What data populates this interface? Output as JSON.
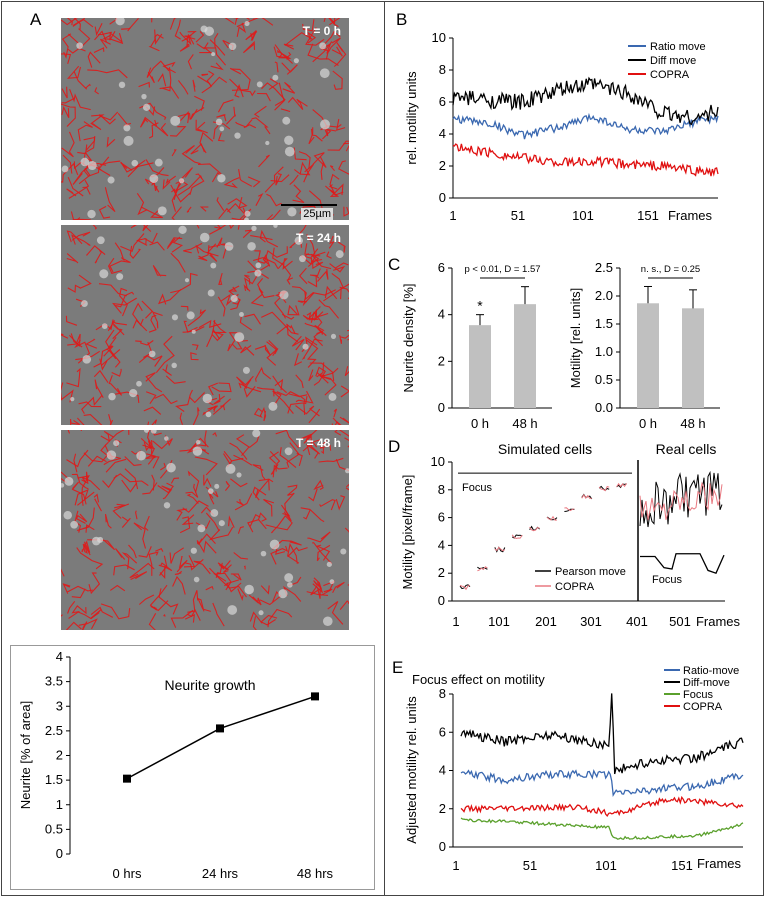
{
  "panel_letters": {
    "A": "A",
    "B": "B",
    "C": "C",
    "D": "D",
    "E": "E"
  },
  "micrographs": [
    {
      "label": "T = 0 h",
      "scalebar": "25µm"
    },
    {
      "label": "T = 24 h"
    },
    {
      "label": "T = 48 h"
    }
  ],
  "colors": {
    "black": "#000000",
    "blue": "#3a68b0",
    "red": "#e01010",
    "green": "#5aa02c",
    "gray": "#c0c0c0",
    "pink": "#e87880",
    "trace": "#e01818"
  },
  "chart_data": [
    {
      "id": "A-neurite-growth",
      "type": "line",
      "title": "Neurite growth",
      "ylabel": "Neurite [% of area]",
      "xlabel": "",
      "categories": [
        "0 hrs",
        "24 hrs",
        "48 hrs"
      ],
      "values": [
        1.53,
        2.55,
        3.2
      ],
      "ylim": [
        0,
        4
      ],
      "yticks": [
        "0",
        "0.5",
        "1",
        "1.5",
        "2",
        "2.5",
        "3",
        "3.5",
        "4"
      ]
    },
    {
      "id": "B-motility",
      "type": "line",
      "ylabel": "rel. motility units",
      "xlabel": "Frames",
      "xlim": [
        1,
        190
      ],
      "ylim": [
        0,
        10
      ],
      "xticks": [
        "1",
        "51",
        "101",
        "151"
      ],
      "yticks": [
        "0",
        "2",
        "4",
        "6",
        "8",
        "10"
      ],
      "series": [
        {
          "name": "Ratio move",
          "color": "#3a68b0",
          "baseline": [
            [
              1,
              5.0
            ],
            [
              30,
              4.6
            ],
            [
              51,
              3.9
            ],
            [
              80,
              4.5
            ],
            [
              101,
              5.1
            ],
            [
              125,
              4.3
            ],
            [
              151,
              4.1
            ],
            [
              175,
              4.8
            ],
            [
              190,
              5.0
            ]
          ],
          "noise": 0.25
        },
        {
          "name": "Diff move",
          "color": "#000000",
          "baseline": [
            [
              1,
              6.3
            ],
            [
              30,
              6.1
            ],
            [
              51,
              6.0
            ],
            [
              80,
              6.8
            ],
            [
              101,
              7.1
            ],
            [
              125,
              6.6
            ],
            [
              151,
              5.3
            ],
            [
              175,
              5.0
            ],
            [
              190,
              5.5
            ]
          ],
          "noise": 0.5
        },
        {
          "name": "COPRA",
          "color": "#e01010",
          "baseline": [
            [
              1,
              3.2
            ],
            [
              30,
              2.8
            ],
            [
              51,
              2.5
            ],
            [
              80,
              2.2
            ],
            [
              101,
              2.3
            ],
            [
              125,
              2.1
            ],
            [
              151,
              2.0
            ],
            [
              175,
              1.7
            ],
            [
              190,
              1.6
            ]
          ],
          "noise": 0.3
        }
      ]
    },
    {
      "id": "C-neurite-density",
      "type": "bar",
      "ylabel": "Neurite density [%]",
      "categories": [
        "0 h",
        "48 h"
      ],
      "values": [
        3.55,
        4.45
      ],
      "errors": [
        0.45,
        0.75
      ],
      "ylim": [
        0,
        6
      ],
      "yticks": [
        "0",
        "2",
        "4",
        "6"
      ],
      "annotation": "p < 0.01, D = 1.57",
      "marker": "*"
    },
    {
      "id": "C-motility",
      "type": "bar",
      "ylabel": "Motility [rel. units]",
      "categories": [
        "0 h",
        "48 h"
      ],
      "values": [
        1.87,
        1.78
      ],
      "errors": [
        0.3,
        0.33
      ],
      "ylim": [
        0,
        2.5
      ],
      "yticks": [
        "0.0",
        "0.5",
        "1.0",
        "1.5",
        "2.0",
        "2.5"
      ],
      "annotation": "n. s., D = 0.25"
    },
    {
      "id": "D-simulated-real",
      "type": "line",
      "ylabel": "Motility [pixel/frame]",
      "xlabel": "Frames",
      "xlim": [
        1,
        590
      ],
      "ylim": [
        0,
        10
      ],
      "xticks": [
        "1",
        "101",
        "201",
        "301",
        "401",
        "501"
      ],
      "yticks": [
        "0",
        "2",
        "4",
        "6",
        "8",
        "10"
      ],
      "section_labels": [
        "Simulated cells",
        "Real cells"
      ],
      "focus_label": "Focus",
      "sim_levels": [
        1.0,
        2.3,
        3.7,
        4.6,
        5.2,
        5.9,
        6.6,
        7.5,
        8.1,
        8.3
      ],
      "focus_level": 9.2,
      "series": [
        {
          "name": "Pearson move",
          "color": "#000000"
        },
        {
          "name": "COPRA",
          "color": "#e87880"
        }
      ]
    },
    {
      "id": "E-focus-effect",
      "type": "line",
      "title": "Focus effect on motility",
      "ylabel": "Adjusted motility rel. units",
      "xlabel": "Frames",
      "xlim": [
        1,
        190
      ],
      "ylim": [
        0,
        8
      ],
      "xticks": [
        "1",
        "51",
        "101",
        "151"
      ],
      "yticks": [
        "0",
        "2",
        "4",
        "6",
        "8"
      ],
      "series": [
        {
          "name": "Ratio-move",
          "color": "#3a68b0",
          "baseline": [
            [
              1,
              3.9
            ],
            [
              30,
              3.5
            ],
            [
              60,
              3.8
            ],
            [
              101,
              3.8
            ],
            [
              103,
              2.8
            ],
            [
              130,
              3.0
            ],
            [
              160,
              3.2
            ],
            [
              190,
              3.8
            ]
          ],
          "noise": 0.2
        },
        {
          "name": "Diff-move",
          "color": "#000000",
          "baseline": [
            [
              1,
              6.0
            ],
            [
              30,
              5.5
            ],
            [
              60,
              5.9
            ],
            [
              100,
              5.3
            ],
            [
              102,
              8.0
            ],
            [
              104,
              4.0
            ],
            [
              130,
              4.5
            ],
            [
              160,
              4.7
            ],
            [
              190,
              5.5
            ]
          ],
          "noise": 0.25
        },
        {
          "name": "Focus",
          "color": "#5aa02c",
          "baseline": [
            [
              1,
              1.5
            ],
            [
              10,
              1.4
            ],
            [
              40,
              1.3
            ],
            [
              100,
              1.0
            ],
            [
              103,
              0.45
            ],
            [
              130,
              0.5
            ],
            [
              160,
              0.6
            ],
            [
              190,
              1.2
            ]
          ],
          "noise": 0.08
        },
        {
          "name": "COPRA",
          "color": "#e01010",
          "baseline": [
            [
              1,
              2.0
            ],
            [
              40,
              2.0
            ],
            [
              80,
              2.1
            ],
            [
              103,
              1.7
            ],
            [
              140,
              2.5
            ],
            [
              160,
              2.4
            ],
            [
              190,
              2.1
            ]
          ],
          "noise": 0.15
        }
      ]
    }
  ]
}
